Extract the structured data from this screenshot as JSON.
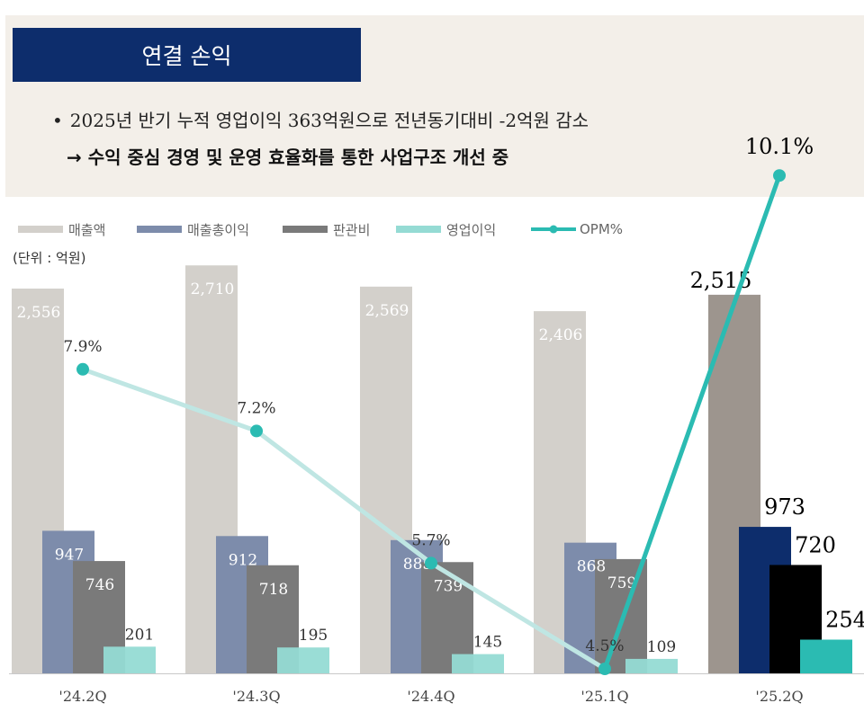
{
  "header": {
    "title": "연결 손익",
    "bullet_text": "2025년 반기 누적 영업이익 363억원으로 전년동기대비 -2억원 감소",
    "sub_text": "→ 수익 중심 경영 및 운영 효율화를 통한 사업구조 개선 중"
  },
  "unit_label": "(단위 : 억원)",
  "chart_data": {
    "type": "bar",
    "categories": [
      "'24.2Q",
      "'24.3Q",
      "'24.4Q",
      "'25.1Q",
      "'25.2Q"
    ],
    "series": [
      {
        "name": "매출액",
        "values": [
          2556,
          2710,
          2569,
          2406,
          2515
        ],
        "labels": [
          "2,556",
          "2,710",
          "2,569",
          "2,406",
          "2,515"
        ],
        "color": "#d3d0cb",
        "highlight_color": "#9d958e"
      },
      {
        "name": "매출총이익",
        "values": [
          947,
          912,
          885,
          868,
          973
        ],
        "labels": [
          "947",
          "912",
          "885",
          "868",
          "973"
        ],
        "color": "#7d8cab",
        "highlight_color": "#0d2d6c"
      },
      {
        "name": "판관비",
        "values": [
          746,
          718,
          739,
          759,
          720
        ],
        "labels": [
          "746",
          "718",
          "739",
          "759",
          "720"
        ],
        "color": "#7a7a7a",
        "highlight_color": "#000000"
      },
      {
        "name": "영업이익",
        "values": [
          201,
          195,
          145,
          109,
          254
        ],
        "labels": [
          "201",
          "195",
          "145",
          "109",
          "254"
        ],
        "color": "#95dbd4",
        "highlight_color": "#2bbbb2"
      }
    ],
    "line": {
      "name": "OPM%",
      "values": [
        7.9,
        7.2,
        5.7,
        4.5,
        10.1
      ],
      "labels": [
        "7.9%",
        "7.2%",
        "5.7%",
        "4.5%",
        "10.1%"
      ],
      "color": "#2bbbb2",
      "faded_color": "#bfe6e3"
    },
    "highlight_index": 4
  }
}
